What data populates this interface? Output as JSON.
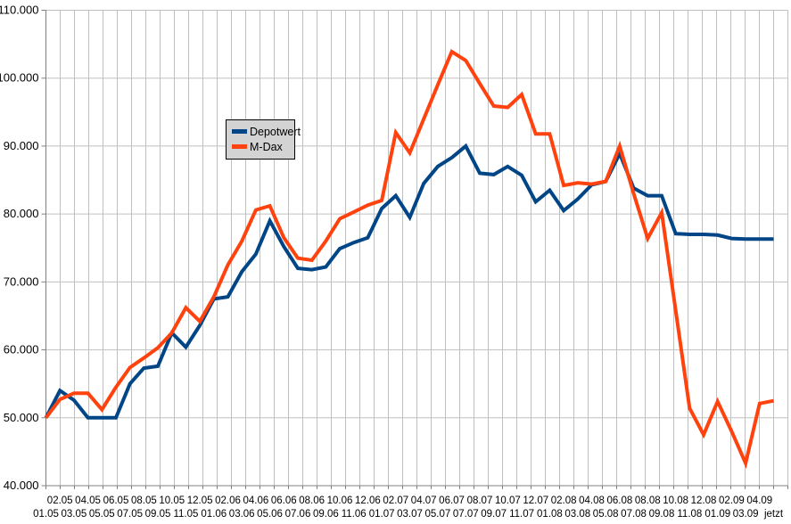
{
  "chart_data": {
    "type": "line",
    "title": "",
    "categories": [
      "01.05",
      "02.05",
      "03.05",
      "04.05",
      "05.05",
      "06.05",
      "07.05",
      "08.05",
      "09.05",
      "10.05",
      "11.05",
      "12.05",
      "01.06",
      "02.06",
      "03.06",
      "04.06",
      "05.06",
      "06.06",
      "07.06",
      "08.06",
      "09.06",
      "10.06",
      "11.06",
      "12.06",
      "01.07",
      "02.07",
      "03.07",
      "04.07",
      "05.07",
      "06.07",
      "07.07",
      "08.07",
      "09.07",
      "10.07",
      "11.07",
      "12.07",
      "01.08",
      "02.08",
      "03.08",
      "04.08",
      "05.08",
      "06.08",
      "07.08",
      "08.08",
      "09.08",
      "10.08",
      "11.08",
      "12.08",
      "01.09",
      "02.09",
      "03.09",
      "04.09",
      "jetzt"
    ],
    "series": [
      {
        "name": "Depotwert",
        "color": "#004586",
        "values": [
          50000,
          54000,
          52600,
          50000,
          50000,
          50000,
          55000,
          57300,
          57600,
          62500,
          60400,
          63600,
          67500,
          67800,
          71500,
          74100,
          79000,
          75200,
          72000,
          71800,
          72200,
          74900,
          75800,
          76500,
          80800,
          82700,
          79500,
          84500,
          87000,
          88300,
          90000,
          86000,
          85800,
          87000,
          85700,
          81800,
          83500,
          80500,
          82200,
          84300,
          84800,
          88900,
          83800,
          82700,
          82700,
          77100,
          77000,
          77000,
          76900,
          76400,
          76300,
          76300,
          76300
        ]
      },
      {
        "name": "M-Dax",
        "color": "#ff420e",
        "values": [
          50000,
          52700,
          53600,
          53600,
          51200,
          54500,
          57400,
          58800,
          60300,
          62500,
          66200,
          64200,
          67800,
          72500,
          76000,
          80600,
          81200,
          76500,
          73500,
          73200,
          76000,
          79300,
          80300,
          81300,
          82000,
          92000,
          89000,
          94000,
          99000,
          103900,
          102600,
          99200,
          95900,
          95700,
          97600,
          91800,
          91800,
          84200,
          84600,
          84400,
          84800,
          90000,
          83000,
          76400,
          80200,
          65800,
          51400,
          47500,
          52400,
          48000,
          43300,
          52100,
          52500
        ]
      }
    ],
    "y_axis": {
      "min": 40000,
      "max": 110000,
      "step": 10000,
      "tick_labels": [
        "110.000",
        "100.000",
        "90.000",
        "80.000",
        "70.000",
        "60.000",
        "50.000",
        "40.000"
      ]
    },
    "x_axis": {
      "label_rows": "staggered",
      "first_label": "01.05",
      "last_label": "jetzt"
    },
    "grid": {
      "horizontal": true,
      "vertical": true,
      "color": "#c0c0c0",
      "axis_color": "#808080"
    },
    "legend": {
      "position": "inside-left",
      "items": [
        {
          "label": "Depotwert",
          "color": "#004586"
        },
        {
          "label": "M-Dax",
          "color": "#ff420e"
        }
      ]
    },
    "background": "#ffffff",
    "legend_background": "#d3d3d3"
  }
}
